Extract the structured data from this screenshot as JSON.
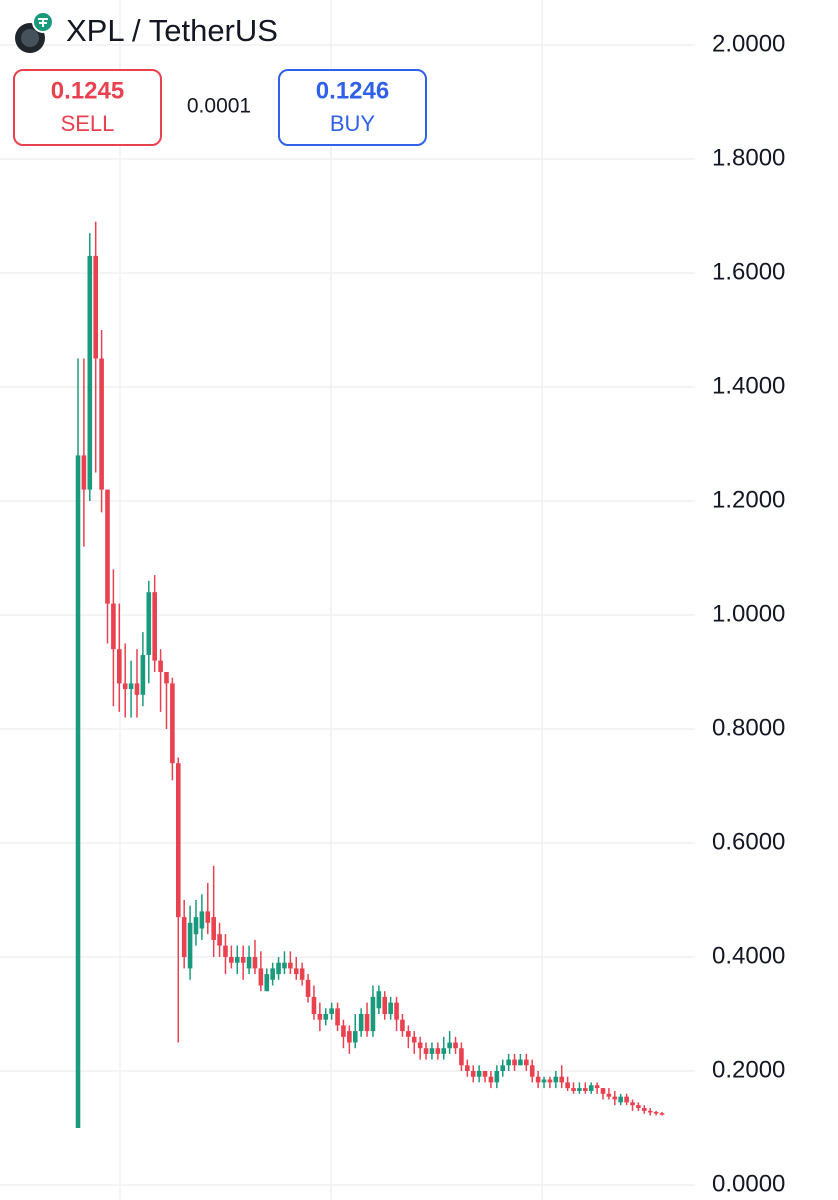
{
  "chart_data": {
    "type": "candlestick",
    "title": "XPL / TetherUS",
    "quotes": {
      "sell": {
        "price": "0.1245",
        "label": "SELL"
      },
      "spread": "0.0001",
      "buy": {
        "price": "0.1246",
        "label": "BUY"
      }
    },
    "up_color": "#1a9a7c",
    "down_color": "#e8414f",
    "grid": true,
    "ylim": [
      0,
      2
    ],
    "yticks": [
      {
        "value": 0,
        "label": "0.0000"
      },
      {
        "value": 0.2,
        "label": "0.2000"
      },
      {
        "value": 0.4,
        "label": "0.4000"
      },
      {
        "value": 0.6,
        "label": "0.6000"
      },
      {
        "value": 0.8,
        "label": "0.8000"
      },
      {
        "value": 1,
        "label": "1.0000"
      },
      {
        "value": 1.2,
        "label": "1.2000"
      },
      {
        "value": 1.4,
        "label": "1.4000"
      },
      {
        "value": 1.6,
        "label": "1.6000"
      },
      {
        "value": 1.8,
        "label": "1.8000"
      },
      {
        "value": 2,
        "label": "2.0000"
      }
    ],
    "categories": [
      null,
      null,
      null,
      null,
      null,
      null,
      null,
      null,
      null,
      null,
      null,
      null,
      null,
      null,
      null,
      null,
      null,
      null,
      null,
      null,
      null,
      null,
      null,
      null,
      null,
      null,
      null,
      null,
      null,
      null,
      null,
      null,
      null,
      null,
      null,
      null,
      null,
      null,
      null,
      null,
      null,
      null,
      null,
      null,
      null,
      null,
      null,
      null,
      null,
      null,
      null,
      null,
      null,
      null,
      null,
      null,
      null,
      null,
      null,
      null,
      null,
      null,
      null,
      null,
      null,
      null,
      null,
      null,
      null,
      null,
      null,
      null,
      null,
      null,
      null,
      null,
      null,
      null,
      null,
      null,
      null,
      null,
      null,
      null,
      null,
      null,
      null,
      null,
      null,
      null,
      null,
      null,
      null,
      null,
      null,
      null,
      null,
      null,
      null,
      null
    ],
    "open": [
      0.1,
      1.28,
      1.22,
      1.63,
      1.45,
      1.22,
      1.02,
      0.94,
      0.88,
      0.87,
      0.88,
      0.86,
      0.93,
      1.04,
      0.92,
      0.9,
      0.88,
      0.74,
      0.47,
      0.38,
      0.44,
      0.45,
      0.48,
      0.47,
      0.44,
      0.42,
      0.4,
      0.39,
      0.4,
      0.38,
      0.4,
      0.38,
      0.34,
      0.36,
      0.37,
      0.38,
      0.39,
      0.38,
      0.38,
      0.36,
      0.33,
      0.3,
      0.29,
      0.3,
      0.31,
      0.28,
      0.27,
      0.25,
      0.27,
      0.3,
      0.27,
      0.31,
      0.33,
      0.3,
      0.32,
      0.29,
      0.27,
      0.26,
      0.25,
      0.24,
      0.23,
      0.24,
      0.23,
      0.24,
      0.25,
      0.24,
      0.21,
      0.2,
      0.19,
      0.2,
      0.19,
      0.18,
      0.2,
      0.21,
      0.22,
      0.21,
      0.22,
      0.21,
      0.19,
      0.18,
      0.185,
      0.18,
      0.19,
      0.18,
      0.17,
      0.165,
      0.17,
      0.165,
      0.175,
      0.17,
      0.16,
      0.155,
      0.145,
      0.155,
      0.145,
      0.14,
      0.135,
      0.13,
      0.128,
      0.126
    ],
    "high": [
      1.45,
      1.45,
      1.67,
      1.69,
      1.5,
      1.22,
      1.08,
      1.02,
      0.95,
      0.92,
      0.94,
      0.97,
      1.06,
      1.07,
      0.94,
      0.9,
      0.89,
      0.75,
      0.5,
      0.49,
      0.5,
      0.51,
      0.53,
      0.56,
      0.46,
      0.44,
      0.42,
      0.42,
      0.42,
      0.42,
      0.43,
      0.41,
      0.38,
      0.39,
      0.4,
      0.41,
      0.41,
      0.4,
      0.39,
      0.37,
      0.35,
      0.32,
      0.31,
      0.32,
      0.32,
      0.29,
      0.28,
      0.3,
      0.31,
      0.32,
      0.35,
      0.35,
      0.34,
      0.33,
      0.33,
      0.3,
      0.28,
      0.27,
      0.26,
      0.25,
      0.25,
      0.25,
      0.26,
      0.27,
      0.26,
      0.25,
      0.22,
      0.21,
      0.21,
      0.2,
      0.2,
      0.21,
      0.22,
      0.23,
      0.23,
      0.23,
      0.23,
      0.22,
      0.2,
      0.19,
      0.19,
      0.2,
      0.21,
      0.19,
      0.18,
      0.18,
      0.18,
      0.18,
      0.18,
      0.17,
      0.17,
      0.165,
      0.16,
      0.16,
      0.15,
      0.145,
      0.14,
      0.135,
      0.13,
      0.128
    ],
    "low": [
      0.1,
      1.12,
      1.2,
      1.25,
      1.18,
      0.95,
      0.84,
      0.83,
      0.82,
      0.82,
      0.82,
      0.84,
      0.88,
      0.9,
      0.83,
      0.8,
      0.71,
      0.25,
      0.38,
      0.36,
      0.42,
      0.43,
      0.44,
      0.4,
      0.4,
      0.37,
      0.38,
      0.37,
      0.36,
      0.37,
      0.37,
      0.34,
      0.34,
      0.35,
      0.36,
      0.37,
      0.37,
      0.36,
      0.35,
      0.32,
      0.29,
      0.27,
      0.28,
      0.29,
      0.27,
      0.24,
      0.23,
      0.24,
      0.26,
      0.26,
      0.26,
      0.3,
      0.29,
      0.29,
      0.27,
      0.26,
      0.24,
      0.23,
      0.22,
      0.22,
      0.22,
      0.22,
      0.22,
      0.23,
      0.23,
      0.2,
      0.19,
      0.18,
      0.18,
      0.18,
      0.17,
      0.17,
      0.19,
      0.2,
      0.2,
      0.21,
      0.2,
      0.18,
      0.17,
      0.17,
      0.17,
      0.17,
      0.17,
      0.165,
      0.16,
      0.16,
      0.16,
      0.16,
      0.16,
      0.15,
      0.15,
      0.14,
      0.14,
      0.14,
      0.13,
      0.13,
      0.125,
      0.122,
      0.122,
      0.122
    ],
    "close": [
      1.28,
      1.22,
      1.63,
      1.45,
      1.22,
      1.02,
      0.94,
      0.88,
      0.87,
      0.88,
      0.86,
      0.93,
      1.04,
      0.92,
      0.9,
      0.88,
      0.74,
      0.47,
      0.4,
      0.46,
      0.47,
      0.48,
      0.46,
      0.43,
      0.42,
      0.4,
      0.39,
      0.4,
      0.39,
      0.4,
      0.38,
      0.35,
      0.37,
      0.38,
      0.39,
      0.39,
      0.38,
      0.37,
      0.36,
      0.33,
      0.3,
      0.29,
      0.3,
      0.31,
      0.28,
      0.26,
      0.25,
      0.27,
      0.3,
      0.27,
      0.33,
      0.34,
      0.3,
      0.32,
      0.29,
      0.27,
      0.26,
      0.25,
      0.24,
      0.23,
      0.24,
      0.23,
      0.24,
      0.25,
      0.24,
      0.21,
      0.2,
      0.19,
      0.2,
      0.19,
      0.18,
      0.2,
      0.21,
      0.22,
      0.21,
      0.22,
      0.21,
      0.19,
      0.18,
      0.185,
      0.18,
      0.19,
      0.18,
      0.17,
      0.165,
      0.17,
      0.165,
      0.175,
      0.17,
      0.16,
      0.155,
      0.15,
      0.155,
      0.145,
      0.14,
      0.135,
      0.13,
      0.128,
      0.126,
      0.1245
    ]
  }
}
